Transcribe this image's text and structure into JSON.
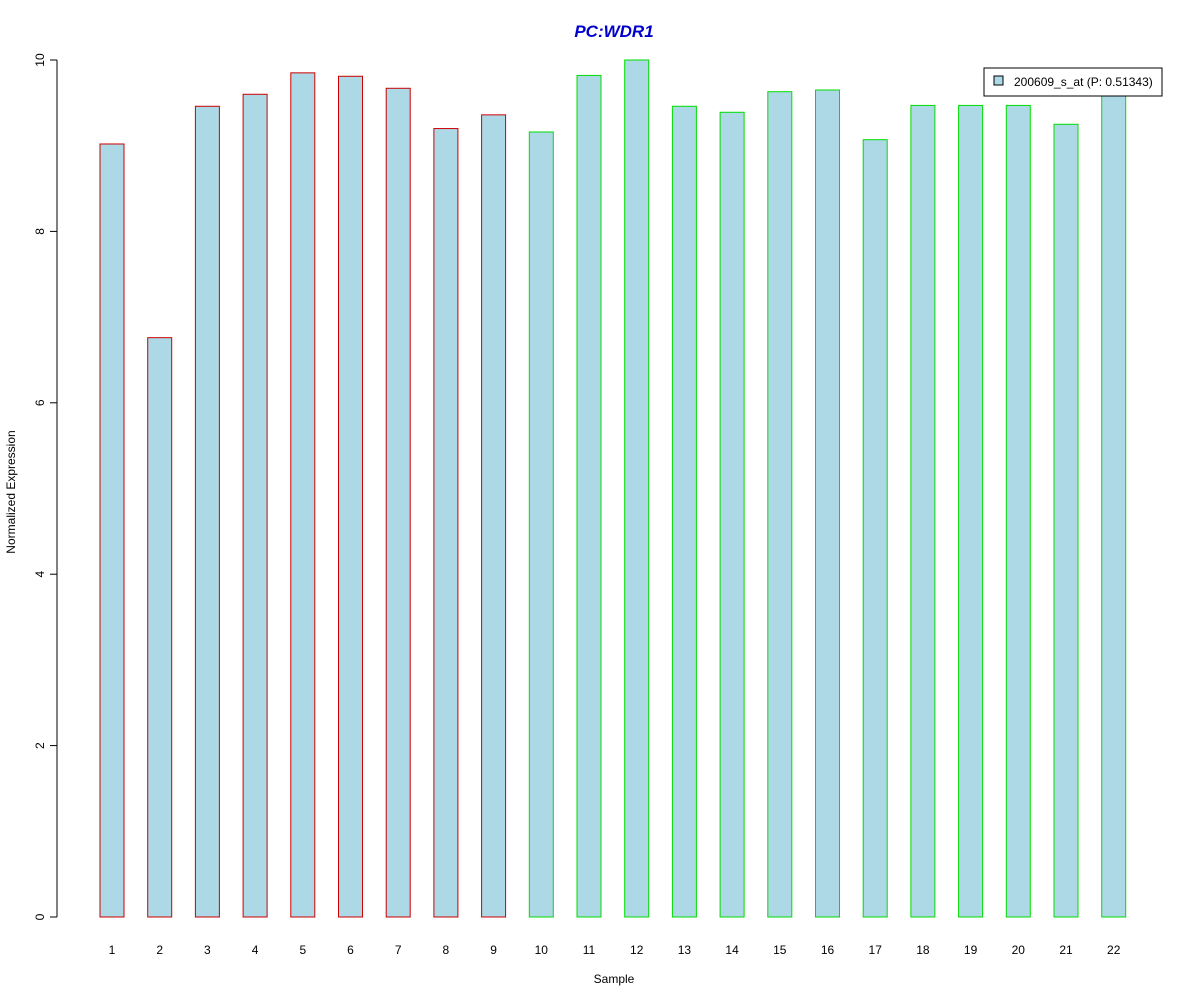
{
  "chart_data": {
    "type": "bar",
    "title": "PC:WDR1",
    "xlabel": "Sample",
    "ylabel": "Normalized Expression",
    "ylim": [
      0,
      10
    ],
    "yticks": [
      "0",
      "2",
      "4",
      "6",
      "8",
      "10"
    ],
    "categories": [
      "1",
      "2",
      "3",
      "4",
      "5",
      "6",
      "7",
      "8",
      "9",
      "10",
      "11",
      "12",
      "13",
      "14",
      "15",
      "16",
      "17",
      "18",
      "19",
      "20",
      "21",
      "22"
    ],
    "series": [
      {
        "name": "200609_s_at (P: 0.51343)",
        "values": [
          9.02,
          6.76,
          9.46,
          9.6,
          9.85,
          9.81,
          9.67,
          9.2,
          9.36,
          9.16,
          9.82,
          10.0,
          9.46,
          9.39,
          9.63,
          9.65,
          9.07,
          9.47,
          9.47,
          9.47,
          9.25,
          9.58
        ],
        "group": [
          "a",
          "a",
          "a",
          "a",
          "a",
          "a",
          "a",
          "a",
          "a",
          "b",
          "b",
          "b",
          "b",
          "b",
          "b",
          "b",
          "b",
          "b",
          "b",
          "b",
          "b",
          "b"
        ]
      }
    ],
    "grid": false,
    "legend_position": "top-right",
    "colors": {
      "bar_fill": "#add8e6",
      "group_a_border": "#cc0000",
      "group_b_border": "#00dd00",
      "title": "#0000cc"
    }
  }
}
